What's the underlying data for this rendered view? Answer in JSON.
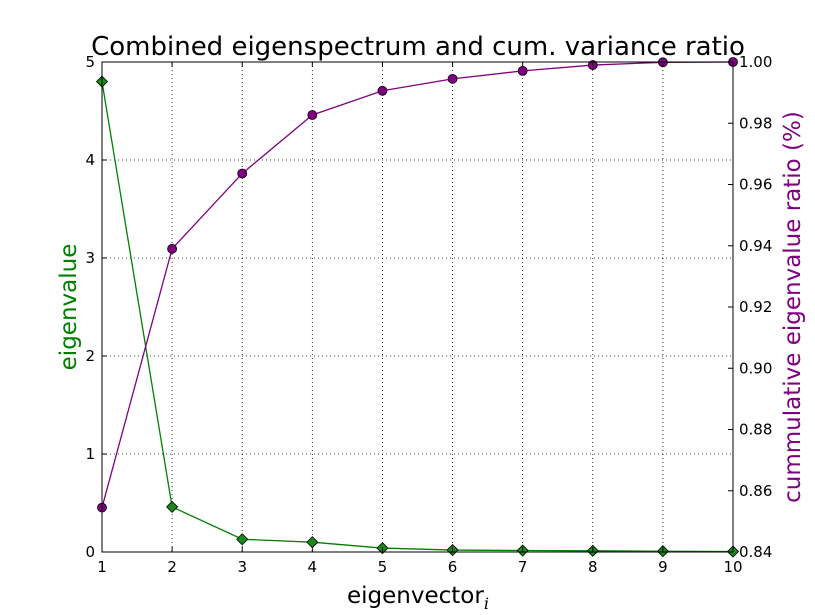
{
  "chart_data": {
    "type": "line",
    "title": "Combined eigenspectrum and cum. variance ratio",
    "xlabel": "eigenvector",
    "xlabel_subscript": "i",
    "x": [
      1,
      2,
      3,
      4,
      5,
      6,
      7,
      8,
      9,
      10
    ],
    "xlim": [
      1,
      10
    ],
    "xticks": [
      "1",
      "2",
      "3",
      "4",
      "5",
      "6",
      "7",
      "8",
      "9",
      "10"
    ],
    "grid": true,
    "left_axis": {
      "label": "eigenvalue",
      "color": "#008000",
      "ylim": [
        0,
        5
      ],
      "ticks": [
        "0",
        "1",
        "2",
        "3",
        "4",
        "5"
      ]
    },
    "right_axis": {
      "label": "cummulative eigenvalue ratio (%)",
      "color": "#800080",
      "ylim": [
        0.84,
        1.0
      ],
      "ticks": [
        "0.84",
        "0.86",
        "0.88",
        "0.90",
        "0.92",
        "0.94",
        "0.96",
        "0.98",
        "1.00"
      ]
    },
    "series": [
      {
        "axis": "left",
        "color": "#008000",
        "marker": "diamond",
        "marker_fill": "#1a8a1a",
        "values": [
          4.8,
          0.46,
          0.13,
          0.1,
          0.04,
          0.02,
          0.015,
          0.012,
          0.008,
          0.005
        ]
      },
      {
        "axis": "right",
        "color": "#800080",
        "marker": "circle",
        "marker_fill": "#800080",
        "values": [
          0.8545,
          0.939,
          0.9636,
          0.9827,
          0.9906,
          0.9945,
          0.9971,
          0.999,
          0.9999,
          1.0
        ]
      }
    ]
  }
}
